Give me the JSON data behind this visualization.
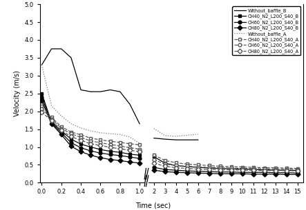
{
  "title": "",
  "xlabel": "Time (sec)",
  "ylabel": "Velocity (m/s)",
  "ylim": [
    0.0,
    5.0
  ],
  "yticks": [
    0.0,
    0.5,
    1.0,
    1.5,
    2.0,
    2.5,
    3.0,
    3.5,
    4.0,
    4.5,
    5.0
  ],
  "segment1_x": [
    0.0,
    0.1,
    0.2,
    0.3,
    0.4,
    0.5,
    0.6,
    0.7,
    0.8,
    0.9,
    1.0
  ],
  "segment2_x": [
    2,
    3,
    4,
    5,
    6,
    7,
    8,
    9,
    10,
    11,
    12,
    13,
    14,
    15
  ],
  "without_baffle_B_s1": [
    3.3,
    3.75,
    3.75,
    3.5,
    2.6,
    2.55,
    2.55,
    2.6,
    2.55,
    2.2,
    1.65
  ],
  "without_baffle_B_s2": [
    1.25,
    1.22,
    1.2,
    1.2,
    1.2
  ],
  "without_baffle_B_s2_x": [
    2,
    3,
    4,
    5,
    6
  ],
  "ch40_B_s1": [
    2.5,
    1.7,
    1.45,
    1.22,
    1.08,
    1.0,
    0.93,
    0.88,
    0.85,
    0.8,
    0.77
  ],
  "ch40_B_s2": [
    0.73,
    0.55,
    0.48,
    0.45,
    0.43,
    0.41,
    0.4,
    0.39,
    0.38,
    0.37,
    0.36,
    0.35,
    0.35,
    0.34
  ],
  "ch60_B_s1": [
    2.4,
    1.67,
    1.4,
    1.12,
    0.98,
    0.89,
    0.83,
    0.79,
    0.76,
    0.72,
    0.68
  ],
  "ch60_B_s2": [
    0.43,
    0.37,
    0.35,
    0.33,
    0.32,
    0.31,
    0.3,
    0.3,
    0.29,
    0.29,
    0.29,
    0.28,
    0.28,
    0.27
  ],
  "ch80_B_s1": [
    2.3,
    1.65,
    1.35,
    1.02,
    0.87,
    0.77,
    0.7,
    0.65,
    0.62,
    0.58,
    0.55
  ],
  "ch80_B_s2": [
    0.35,
    0.31,
    0.29,
    0.28,
    0.27,
    0.26,
    0.25,
    0.25,
    0.25,
    0.24,
    0.24,
    0.24,
    0.23,
    0.23
  ],
  "without_baffle_A_s1": [
    3.3,
    2.15,
    1.87,
    1.65,
    1.53,
    1.45,
    1.4,
    1.37,
    1.35,
    1.28,
    1.1
  ],
  "without_baffle_A_s2": [
    1.52,
    1.32,
    1.3,
    1.33,
    1.36
  ],
  "without_baffle_A_s2_x": [
    2,
    3,
    4,
    5,
    6
  ],
  "ch40_A_s1": [
    2.15,
    1.83,
    1.57,
    1.42,
    1.34,
    1.25,
    1.2,
    1.16,
    1.13,
    1.09,
    1.06
  ],
  "ch40_A_s2": [
    0.78,
    0.62,
    0.56,
    0.52,
    0.5,
    0.48,
    0.46,
    0.45,
    0.44,
    0.43,
    0.42,
    0.42,
    0.41,
    0.4
  ],
  "ch60_A_s1": [
    2.08,
    1.79,
    1.52,
    1.37,
    1.27,
    1.17,
    1.12,
    1.07,
    1.03,
    0.98,
    0.94
  ],
  "ch60_A_s2": [
    0.65,
    0.52,
    0.48,
    0.46,
    0.44,
    0.43,
    0.42,
    0.41,
    0.4,
    0.4,
    0.39,
    0.38,
    0.38,
    0.37
  ],
  "ch80_A_s1": [
    1.98,
    1.74,
    1.47,
    1.29,
    1.19,
    1.09,
    1.04,
    0.99,
    0.95,
    0.91,
    0.87
  ],
  "ch80_A_s2": [
    0.55,
    0.46,
    0.42,
    0.4,
    0.38,
    0.37,
    0.36,
    0.36,
    0.35,
    0.35,
    0.34,
    0.34,
    0.34,
    0.33
  ],
  "color_B": "#000000",
  "color_A": "#555555",
  "color_without_B": "#000000",
  "color_without_A": "#777777"
}
